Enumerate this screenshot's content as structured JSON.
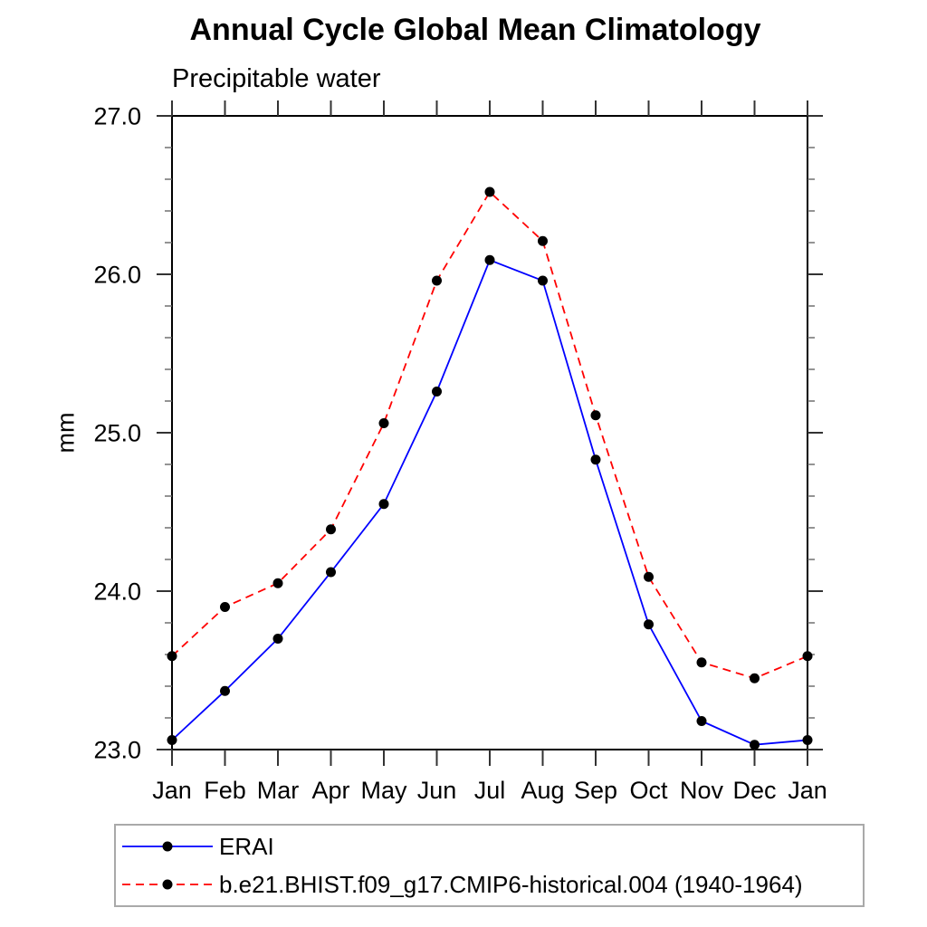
{
  "chart_data": {
    "type": "line",
    "title": "Annual Cycle Global Mean Climatology",
    "subtitle": "Precipitable water",
    "ylabel": "mm",
    "xlabel": "",
    "categories": [
      "Jan",
      "Feb",
      "Mar",
      "Apr",
      "May",
      "Jun",
      "Jul",
      "Aug",
      "Sep",
      "Oct",
      "Nov",
      "Dec",
      "Jan"
    ],
    "ylim": [
      23.0,
      27.0
    ],
    "ytick_labels": [
      "23.0",
      "24.0",
      "25.0",
      "26.0",
      "27.0"
    ],
    "ytick_minor_step": 0.2,
    "grid": "off",
    "legend_position": "bottom-left-box",
    "series": [
      {
        "name": "ERAI",
        "color": "#0000ff",
        "line_style": "solid",
        "marker": "filled-circle",
        "marker_color": "#000000",
        "values": [
          23.06,
          23.37,
          23.7,
          24.12,
          24.55,
          25.26,
          26.09,
          25.96,
          24.83,
          23.79,
          23.18,
          23.03,
          23.06
        ]
      },
      {
        "name": "b.e21.BHIST.f09_g17.CMIP6-historical.004 (1940-1964)",
        "color": "#ff0000",
        "line_style": "dashed",
        "marker": "filled-circle",
        "marker_color": "#000000",
        "values": [
          23.59,
          23.9,
          24.05,
          24.39,
          25.06,
          25.96,
          26.52,
          26.21,
          25.11,
          24.09,
          23.55,
          23.45,
          23.59
        ]
      }
    ],
    "axis_color": "#000000",
    "legend_border_color": "#a9a9a9"
  }
}
